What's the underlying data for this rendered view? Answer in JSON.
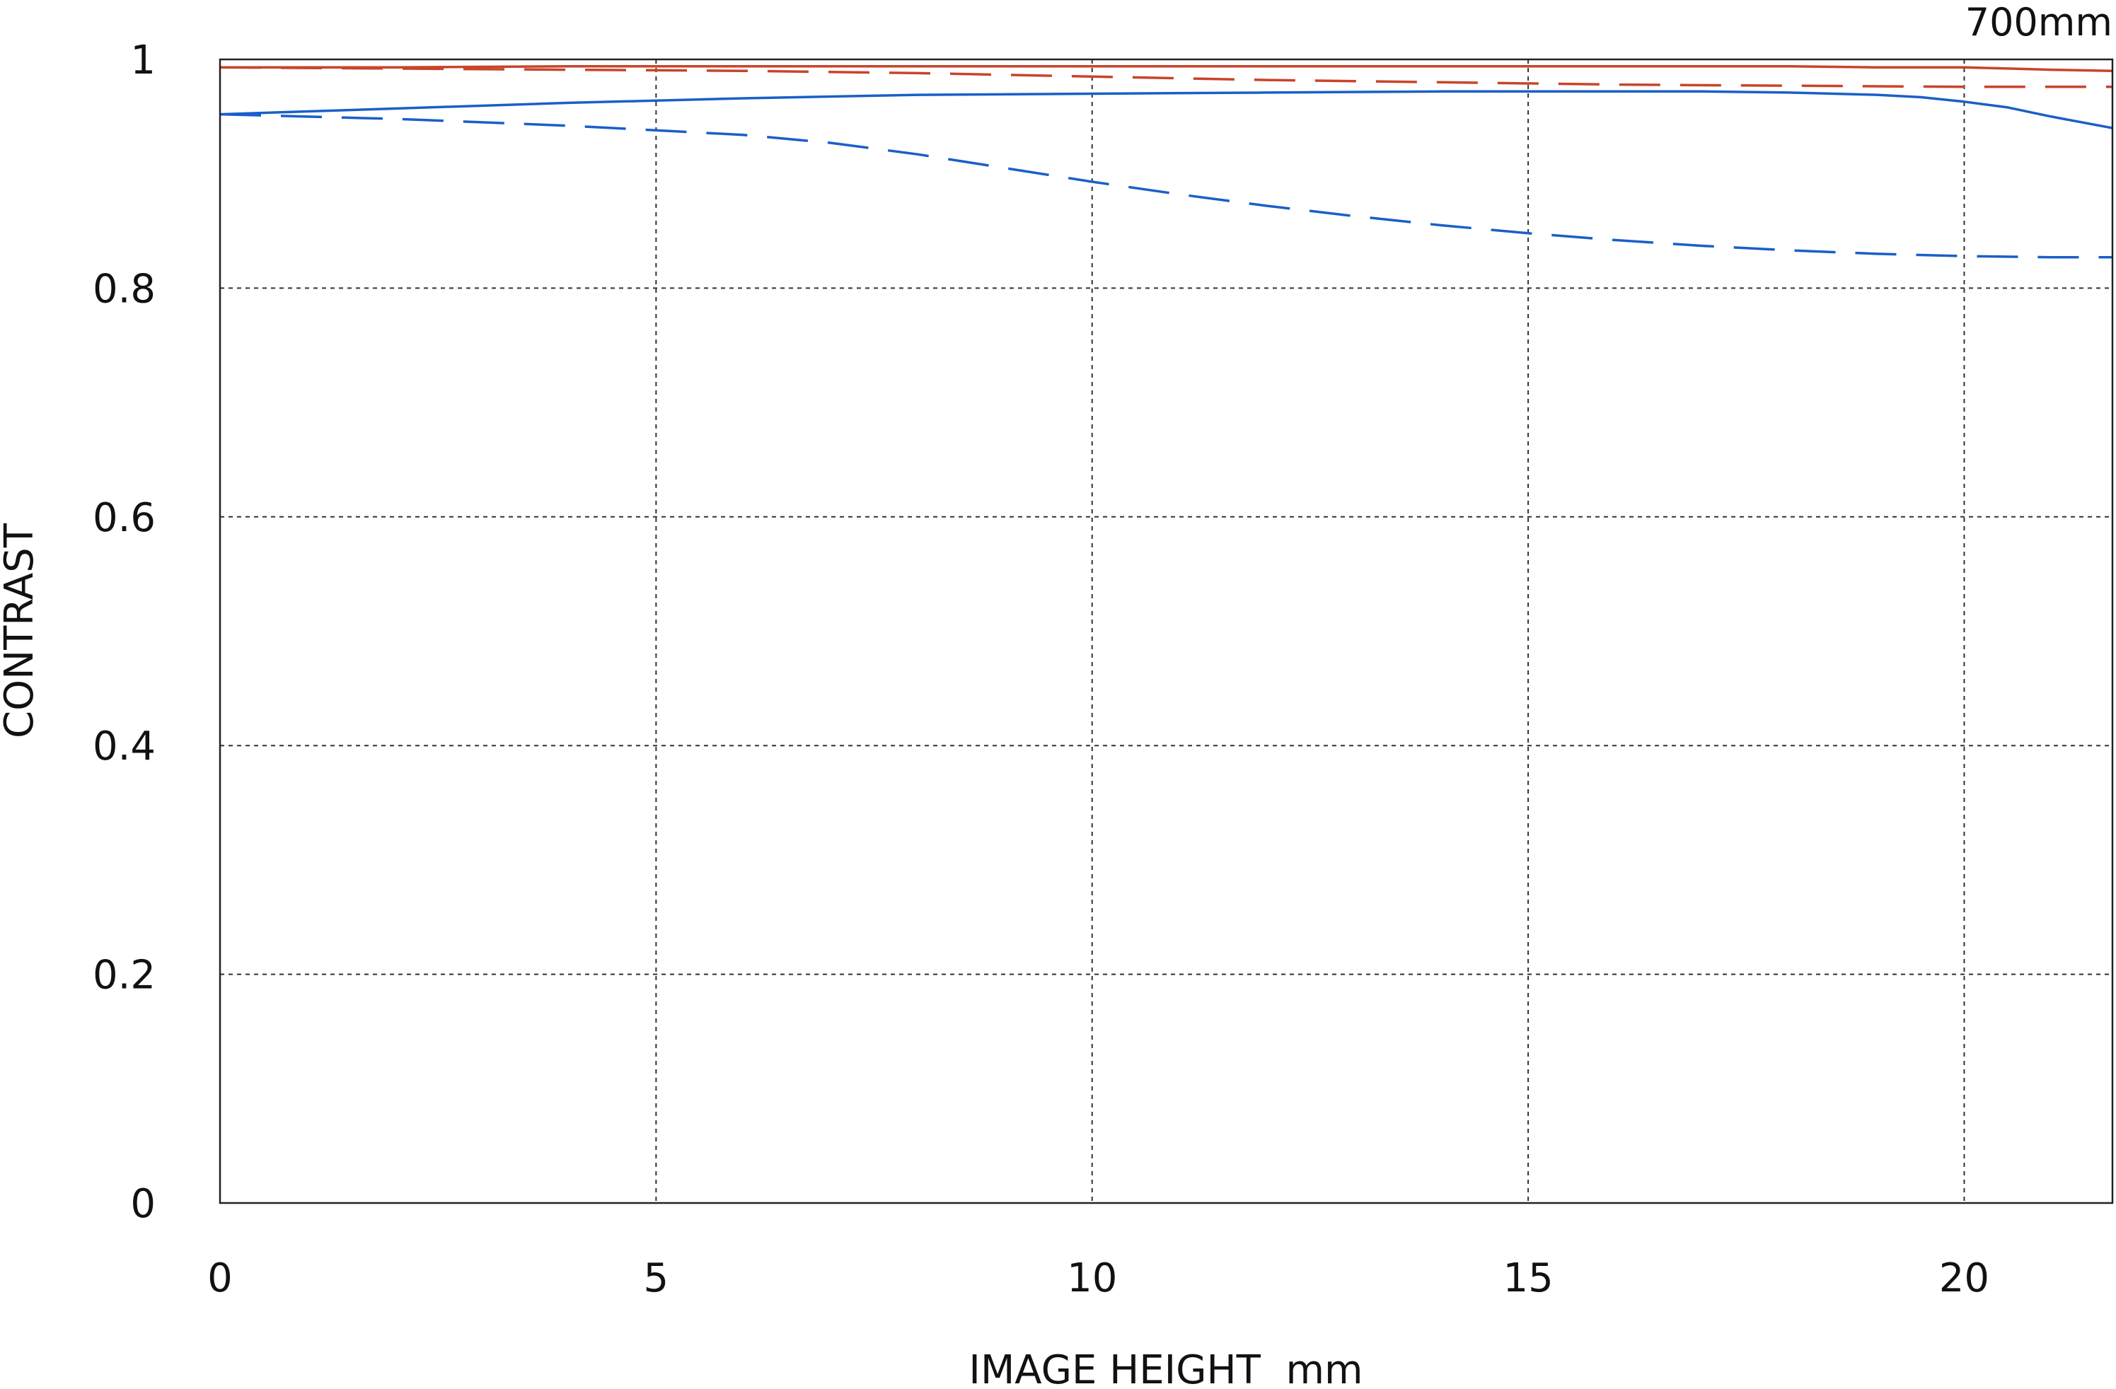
{
  "chart_data": {
    "type": "line",
    "corner_label": "700mm",
    "xlabel": "IMAGE HEIGHT  mm",
    "ylabel": "CONTRAST",
    "xlim": [
      0,
      21.7
    ],
    "ylim": [
      0,
      1
    ],
    "x_ticks": [
      0,
      5,
      10,
      15,
      20
    ],
    "x_tick_labels": [
      "0",
      "5",
      "10",
      "15",
      "20"
    ],
    "y_ticks": [
      0,
      0.2,
      0.4,
      0.6,
      0.8,
      1
    ],
    "y_tick_labels": [
      "0",
      "0.2",
      "0.4",
      "0.6",
      "0.8",
      "1"
    ],
    "grid": true,
    "series": [
      {
        "color": "#c8442a",
        "dash": "solid",
        "x": [
          0,
          2,
          4,
          6,
          8,
          10,
          12,
          14,
          16,
          18,
          19,
          20,
          20.5,
          21,
          21.7
        ],
        "y": [
          0.993,
          0.993,
          0.994,
          0.994,
          0.994,
          0.994,
          0.994,
          0.994,
          0.994,
          0.994,
          0.993,
          0.993,
          0.992,
          0.991,
          0.99
        ]
      },
      {
        "color": "#c8442a",
        "dash": "dashed",
        "x": [
          0,
          2,
          4,
          6,
          8,
          10,
          12,
          14,
          16,
          18,
          20,
          21,
          21.7
        ],
        "y": [
          0.993,
          0.992,
          0.991,
          0.99,
          0.988,
          0.985,
          0.982,
          0.98,
          0.978,
          0.977,
          0.976,
          0.976,
          0.976
        ]
      },
      {
        "color": "#1a5fc8",
        "dash": "solid",
        "x": [
          0,
          2,
          4,
          6,
          8,
          10,
          12,
          14,
          16,
          17,
          18,
          19,
          19.5,
          20,
          20.5,
          21,
          21.7
        ],
        "y": [
          0.952,
          0.957,
          0.962,
          0.966,
          0.969,
          0.97,
          0.971,
          0.972,
          0.972,
          0.972,
          0.971,
          0.969,
          0.967,
          0.963,
          0.958,
          0.95,
          0.94
        ]
      },
      {
        "color": "#1a5fc8",
        "dash": "dashed",
        "x": [
          0,
          1,
          2,
          3,
          4,
          5,
          6,
          7,
          8,
          9,
          10,
          11,
          12,
          13,
          14,
          15,
          16,
          17,
          18,
          19,
          20,
          21,
          21.7
        ],
        "y": [
          0.952,
          0.95,
          0.948,
          0.945,
          0.942,
          0.938,
          0.934,
          0.927,
          0.917,
          0.905,
          0.893,
          0.882,
          0.872,
          0.863,
          0.855,
          0.848,
          0.842,
          0.837,
          0.833,
          0.83,
          0.828,
          0.827,
          0.827
        ]
      }
    ]
  }
}
